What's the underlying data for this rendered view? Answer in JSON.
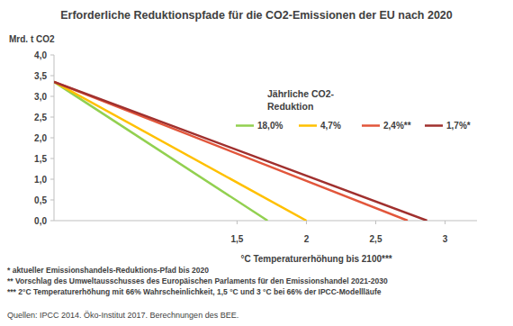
{
  "chart_data": {
    "type": "line",
    "title": "Erforderliche Reduktionspfade für die CO2-Emissionen der EU nach 2020",
    "y_label": "Mrd. t CO2",
    "x_label": "°C Temperaturerhöhung bis 2100***",
    "legend_title": [
      "Jährliche CO2-",
      "Reduktion"
    ],
    "legend": "top",
    "grid": false,
    "series": [
      {
        "name": "18,0%",
        "color": "#92d050",
        "x": [
          0.18,
          1.72
        ],
        "values": [
          3.35,
          0
        ]
      },
      {
        "name": "4,7%",
        "color": "#ffc000",
        "x": [
          0.18,
          2.0
        ],
        "values": [
          3.35,
          0
        ]
      },
      {
        "name": "2,4%**",
        "color": "#e2563b",
        "x": [
          0.18,
          2.73
        ],
        "values": [
          3.35,
          0
        ]
      },
      {
        "name": "1,7%*",
        "color": "#a0302e",
        "x": [
          0.18,
          2.87
        ],
        "values": [
          3.35,
          0
        ]
      }
    ],
    "xlim": [
      0.18,
      3.23
    ],
    "xticks": [
      {
        "value": 1.5,
        "label": "1,5"
      },
      2,
      {
        "value": 2.5,
        "label": "2,5"
      },
      3
    ],
    "ylim": [
      0,
      4
    ],
    "yticks": [
      {
        "value": 0,
        "label": "0,0"
      },
      {
        "value": 0.5,
        "label": "0,5"
      },
      {
        "value": 1,
        "label": "1,0"
      },
      {
        "value": 1.5,
        "label": "1,5"
      },
      {
        "value": 2,
        "label": "2,0"
      },
      {
        "value": 2.5,
        "label": "2,5"
      },
      {
        "value": 3,
        "label": "3,0"
      },
      {
        "value": 3.5,
        "label": "3,5"
      },
      {
        "value": 4,
        "label": "4,0"
      }
    ],
    "notes": [
      "* aktueller Emissionshandels-Reduktions-Pfad bis 2020",
      "** Vorschlag des Umweltausschusses des Europäischen Parlaments für den Emissionshandel 2021-2030",
      "*** 2°C Temperaturerhöhung mit 66% Wahrscheinlichkeit, 1,5 °C und 3 °C bei  66% der IPCC-Modellläufe"
    ],
    "source": "Quellen: IPCC  2014. Öko-Institut 2017. Berechnungen des BEE."
  }
}
